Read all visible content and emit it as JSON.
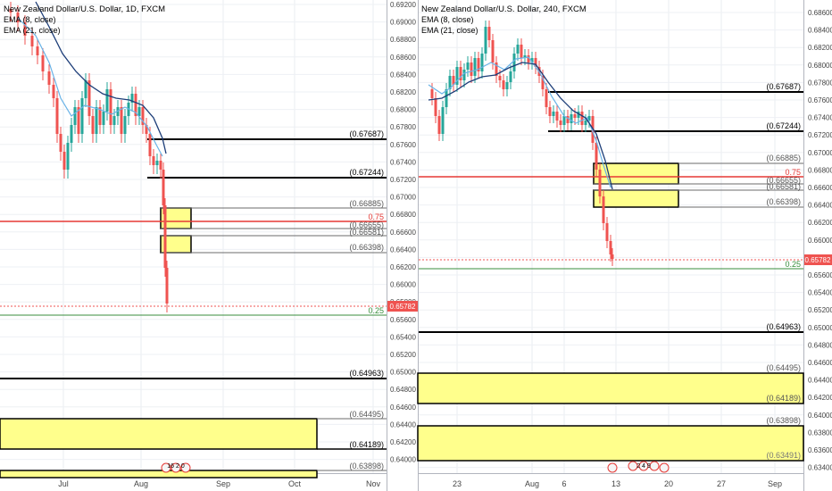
{
  "chart_data": [
    {
      "type": "candlestick",
      "title": "New Zealand Dollar/U.S. Dollar, 1D, FXCM",
      "legend": [
        "EMA (8, close)",
        "EMA (21, close)"
      ],
      "y_ticks": [
        "0.69200",
        "0.69000",
        "0.68800",
        "0.68600",
        "0.68400",
        "0.68200",
        "0.68000",
        "0.67800",
        "0.67600",
        "0.67400",
        "0.67200",
        "0.67000",
        "0.66800",
        "0.66600",
        "0.66400",
        "0.66200",
        "0.66000",
        "0.65800",
        "0.65600",
        "0.65400",
        "0.65200",
        "0.65000",
        "0.64800",
        "0.64600",
        "0.64400",
        "0.64200",
        "0.64000"
      ],
      "x_ticks": [
        "Jul",
        "Aug",
        "Sep",
        "Oct",
        "Nov"
      ],
      "ylim": [
        0.6393,
        0.6929
      ],
      "last_price": "0.65782",
      "horizontal_levels": [
        {
          "label": "(0.67687)",
          "value": 0.67687,
          "kind": "black"
        },
        {
          "label": "(0.67244)",
          "value": 0.67244,
          "kind": "black"
        },
        {
          "label": "(0.66885)",
          "value": 0.66885,
          "kind": "gray"
        },
        {
          "label": "0.75",
          "value": 0.6673,
          "kind": "red"
        },
        {
          "label": "(0.66655)",
          "value": 0.66655,
          "kind": "gray"
        },
        {
          "label": "(0.66581)",
          "value": 0.66581,
          "kind": "gray"
        },
        {
          "label": "(0.66398)",
          "value": 0.66398,
          "kind": "gray"
        },
        {
          "label": "0.25",
          "value": 0.6566,
          "kind": "green"
        },
        {
          "label": "(0.64963)",
          "value": 0.64963,
          "kind": "black"
        },
        {
          "label": "(0.64495)",
          "value": 0.64495,
          "kind": "gray"
        },
        {
          "label": "(0.64189)",
          "value": 0.64189,
          "kind": "black"
        },
        {
          "label": "(0.63898)",
          "value": 0.63898,
          "kind": "gray"
        }
      ],
      "zones": [
        {
          "from": 0.66655,
          "to": 0.66885
        },
        {
          "from": 0.66398,
          "to": 0.66581
        },
        {
          "from": 0.64189,
          "to": 0.64495
        },
        {
          "from": 0.638,
          "to": 0.63898
        }
      ],
      "event_markers": "16 2 0"
    },
    {
      "type": "candlestick",
      "title": "New Zealand Dollar/U.S. Dollar, 240, FXCM",
      "legend": [
        "EMA (8, close)",
        "EMA (21, close)"
      ],
      "y_ticks": [
        "0.68600",
        "0.68400",
        "0.68200",
        "0.68000",
        "0.67800",
        "0.67600",
        "0.67400",
        "0.67200",
        "0.67000",
        "0.66800",
        "0.66600",
        "0.66400",
        "0.66200",
        "0.66000",
        "0.65800",
        "0.65600",
        "0.65400",
        "0.65200",
        "0.65000",
        "0.64800",
        "0.64600",
        "0.64400",
        "0.64200",
        "0.64000",
        "0.63800",
        "0.63600",
        "0.63400"
      ],
      "x_ticks": [
        "23",
        "Aug",
        "6",
        "13",
        "20",
        "27",
        "Sep"
      ],
      "ylim": [
        0.6335,
        0.6871
      ],
      "last_price": "0.65782",
      "horizontal_levels": [
        {
          "label": "(0.67687)",
          "value": 0.67687,
          "kind": "black"
        },
        {
          "label": "(0.67244)",
          "value": 0.67244,
          "kind": "black"
        },
        {
          "label": "(0.66885)",
          "value": 0.66885,
          "kind": "gray"
        },
        {
          "label": "0.75",
          "value": 0.6673,
          "kind": "red"
        },
        {
          "label": "(0.66655)",
          "value": 0.66655,
          "kind": "gray"
        },
        {
          "label": "(0.66581)",
          "value": 0.66581,
          "kind": "gray"
        },
        {
          "label": "(0.66398)",
          "value": 0.66398,
          "kind": "gray"
        },
        {
          "label": "0.25",
          "value": 0.6568,
          "kind": "green"
        },
        {
          "label": "(0.64963)",
          "value": 0.64963,
          "kind": "black"
        },
        {
          "label": "(0.64495)",
          "value": 0.64495,
          "kind": "gray"
        },
        {
          "label": "(0.64189)",
          "value": 0.64189,
          "kind": "black"
        },
        {
          "label": "(0.63898)",
          "value": 0.63898,
          "kind": "gray"
        },
        {
          "label": "(0.63491)",
          "value": 0.63491,
          "kind": "gray"
        }
      ],
      "zones": [
        {
          "from": 0.66655,
          "to": 0.66885
        },
        {
          "from": 0.66398,
          "to": 0.66581
        },
        {
          "from": 0.64189,
          "to": 0.64495
        },
        {
          "from": 0.63491,
          "to": 0.63898
        }
      ],
      "event_markers": "2 4 9"
    }
  ]
}
